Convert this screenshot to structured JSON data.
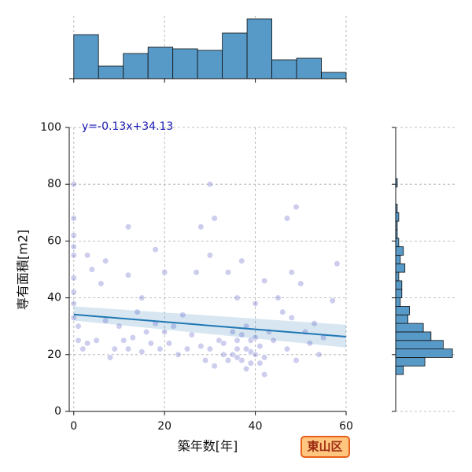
{
  "chart_data": [
    {
      "type": "scatter",
      "x_label": "築年数[年]",
      "y_label": "専有面積[m2]",
      "annotation": "y=-0.13x+34.13",
      "xlim": [
        -1,
        60
      ],
      "ylim": [
        0,
        100
      ],
      "xticks": [
        0,
        20,
        40,
        60
      ],
      "yticks": [
        0,
        20,
        40,
        60,
        80,
        100
      ],
      "grid": true,
      "color": "#5a5ac8",
      "x": [
        0,
        0,
        0,
        0,
        0,
        0,
        0,
        0,
        0,
        1,
        1,
        2,
        3,
        3,
        4,
        5,
        6,
        7,
        7,
        8,
        9,
        10,
        11,
        12,
        12,
        12,
        13,
        14,
        15,
        15,
        16,
        17,
        18,
        18,
        19,
        20,
        20,
        21,
        22,
        23,
        24,
        25,
        26,
        27,
        28,
        28,
        29,
        30,
        30,
        30,
        31,
        31,
        32,
        33,
        34,
        35,
        36,
        36,
        37,
        37,
        38,
        38,
        39,
        40,
        40,
        41,
        42,
        42,
        43,
        44,
        45,
        46,
        47,
        47,
        48,
        48,
        49,
        49,
        50,
        51,
        52,
        53,
        54,
        55,
        57,
        58,
        35,
        36,
        37,
        39,
        40,
        41,
        33,
        34,
        38,
        42,
        39,
        36
      ],
      "values": [
        80,
        68,
        62,
        58,
        55,
        47,
        42,
        38,
        33,
        30,
        25,
        22,
        55,
        24,
        50,
        25,
        45,
        53,
        32,
        19,
        22,
        30,
        25,
        65,
        48,
        22,
        26,
        35,
        40,
        21,
        28,
        24,
        57,
        31,
        22,
        49,
        28,
        24,
        30,
        20,
        34,
        22,
        27,
        49,
        65,
        23,
        18,
        80,
        55,
        22,
        68,
        16,
        25,
        20,
        49,
        28,
        40,
        22,
        53,
        18,
        30,
        15,
        25,
        38,
        20,
        17,
        46,
        13,
        28,
        25,
        40,
        35,
        68,
        22,
        49,
        33,
        72,
        18,
        45,
        28,
        24,
        31,
        20,
        26,
        39,
        52,
        20,
        25,
        27,
        21,
        26,
        23,
        24,
        18,
        22,
        19,
        17,
        19
      ],
      "fit": {
        "color": "#1f77b4",
        "x": [
          0,
          60
        ],
        "values": [
          34.13,
          26.33
        ],
        "lower": [
          32,
          22.5
        ],
        "upper": [
          37,
          30.5
        ]
      }
    },
    {
      "type": "histogram",
      "orientation": "vertical",
      "color": "#5799c7",
      "bins": [
        0,
        5.45,
        10.91,
        16.36,
        21.82,
        27.27,
        32.73,
        38.18,
        43.64,
        49.09,
        54.55,
        60
      ],
      "values": [
        28,
        8,
        16,
        20,
        19,
        18,
        29,
        38,
        12,
        13,
        4
      ],
      "xlim": [
        -1,
        60
      ],
      "ylim": [
        0,
        40
      ],
      "xticks": [
        0,
        20,
        40,
        60
      ],
      "grid": true
    },
    {
      "type": "histogram",
      "orientation": "horizontal",
      "color": "#5799c7",
      "bins": [
        13,
        16,
        19,
        22,
        25,
        28,
        31,
        34,
        37,
        40,
        43,
        46,
        49,
        52,
        55,
        58,
        61,
        64,
        67,
        70,
        73,
        76,
        79,
        82
      ],
      "values": [
        5,
        19,
        37,
        31,
        23,
        18,
        8,
        9,
        3,
        4,
        4,
        2,
        6,
        3,
        5,
        2,
        1,
        1,
        2,
        1,
        0,
        0,
        1
      ],
      "xlim": [
        0,
        40
      ],
      "ylim": [
        0,
        100
      ],
      "yticks": [
        0,
        20,
        40,
        60,
        80,
        100
      ],
      "grid": true
    }
  ],
  "badge": {
    "label": "東山区"
  }
}
